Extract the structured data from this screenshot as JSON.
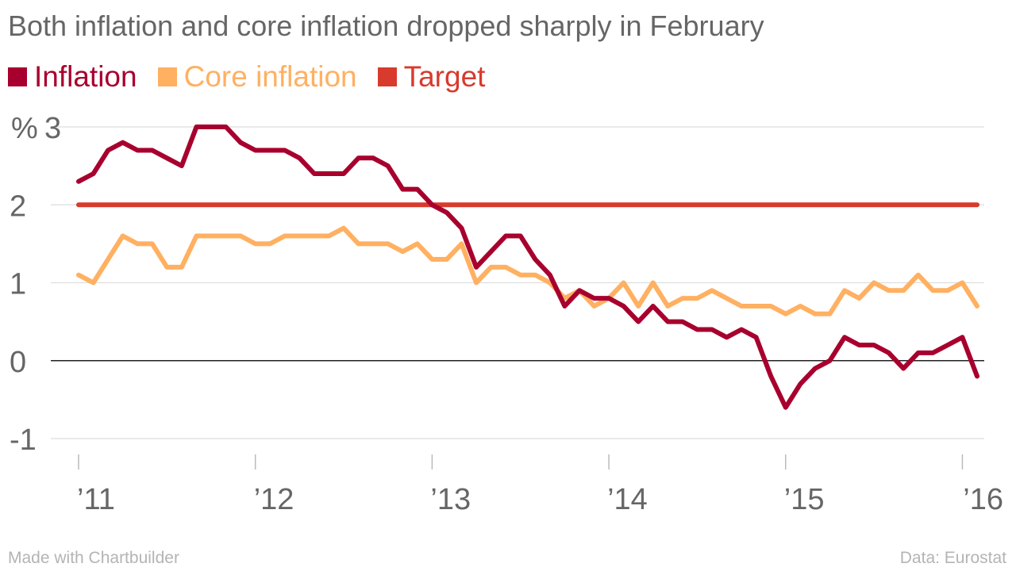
{
  "chart_data": {
    "type": "line",
    "title": "Both inflation and core inflation dropped sharply in February",
    "xlabel": "",
    "ylabel": "",
    "y_unit": "%",
    "ylim": [
      -1,
      3
    ],
    "y_ticks": [
      -1,
      0,
      1,
      2,
      3
    ],
    "y_tick_labels": [
      "-1",
      "0",
      "1",
      "2",
      "3"
    ],
    "x_ticks": [
      "2011-01",
      "2012-01",
      "2013-01",
      "2014-01",
      "2015-01",
      "2016-01"
    ],
    "x_tick_labels": [
      "’11",
      "’12",
      "’13",
      "’14",
      "’15",
      "’16"
    ],
    "x": [
      "2011-01",
      "2011-02",
      "2011-03",
      "2011-04",
      "2011-05",
      "2011-06",
      "2011-07",
      "2011-08",
      "2011-09",
      "2011-10",
      "2011-11",
      "2011-12",
      "2012-01",
      "2012-02",
      "2012-03",
      "2012-04",
      "2012-05",
      "2012-06",
      "2012-07",
      "2012-08",
      "2012-09",
      "2012-10",
      "2012-11",
      "2012-12",
      "2013-01",
      "2013-02",
      "2013-03",
      "2013-04",
      "2013-05",
      "2013-06",
      "2013-07",
      "2013-08",
      "2013-09",
      "2013-10",
      "2013-11",
      "2013-12",
      "2014-01",
      "2014-02",
      "2014-03",
      "2014-04",
      "2014-05",
      "2014-06",
      "2014-07",
      "2014-08",
      "2014-09",
      "2014-10",
      "2014-11",
      "2014-12",
      "2015-01",
      "2015-02",
      "2015-03",
      "2015-04",
      "2015-05",
      "2015-06",
      "2015-07",
      "2015-08",
      "2015-09",
      "2015-10",
      "2015-11",
      "2015-12",
      "2016-01",
      "2016-02"
    ],
    "grid": true,
    "legend_position": "top-left",
    "series": [
      {
        "name": "Inflation",
        "color": "#a8002e",
        "values": [
          2.3,
          2.4,
          2.7,
          2.8,
          2.7,
          2.7,
          2.6,
          2.5,
          3.0,
          3.0,
          3.0,
          2.8,
          2.7,
          2.7,
          2.7,
          2.6,
          2.4,
          2.4,
          2.4,
          2.6,
          2.6,
          2.5,
          2.2,
          2.2,
          2.0,
          1.9,
          1.7,
          1.2,
          1.4,
          1.6,
          1.6,
          1.3,
          1.1,
          0.7,
          0.9,
          0.8,
          0.8,
          0.7,
          0.5,
          0.7,
          0.5,
          0.5,
          0.4,
          0.4,
          0.3,
          0.4,
          0.3,
          -0.2,
          -0.6,
          -0.3,
          -0.1,
          0.0,
          0.3,
          0.2,
          0.2,
          0.1,
          -0.1,
          0.1,
          0.1,
          0.2,
          0.3,
          -0.2
        ]
      },
      {
        "name": "Core inflation",
        "color": "#ffb061",
        "values": [
          1.1,
          1.0,
          1.3,
          1.6,
          1.5,
          1.5,
          1.2,
          1.2,
          1.6,
          1.6,
          1.6,
          1.6,
          1.5,
          1.5,
          1.6,
          1.6,
          1.6,
          1.6,
          1.7,
          1.5,
          1.5,
          1.5,
          1.4,
          1.5,
          1.3,
          1.3,
          1.5,
          1.0,
          1.2,
          1.2,
          1.1,
          1.1,
          1.0,
          0.8,
          0.9,
          0.7,
          0.8,
          1.0,
          0.7,
          1.0,
          0.7,
          0.8,
          0.8,
          0.9,
          0.8,
          0.7,
          0.7,
          0.7,
          0.6,
          0.7,
          0.6,
          0.6,
          0.9,
          0.8,
          1.0,
          0.9,
          0.9,
          1.1,
          0.9,
          0.9,
          1.0,
          0.7
        ]
      },
      {
        "name": "Target",
        "color": "#d83a2e",
        "values": [
          2,
          2,
          2,
          2,
          2,
          2,
          2,
          2,
          2,
          2,
          2,
          2,
          2,
          2,
          2,
          2,
          2,
          2,
          2,
          2,
          2,
          2,
          2,
          2,
          2,
          2,
          2,
          2,
          2,
          2,
          2,
          2,
          2,
          2,
          2,
          2,
          2,
          2,
          2,
          2,
          2,
          2,
          2,
          2,
          2,
          2,
          2,
          2,
          2,
          2,
          2,
          2,
          2,
          2,
          2,
          2,
          2,
          2,
          2,
          2,
          2,
          2
        ]
      }
    ]
  },
  "footer": {
    "left": "Made with Chartbuilder",
    "right": "Data: Eurostat"
  }
}
